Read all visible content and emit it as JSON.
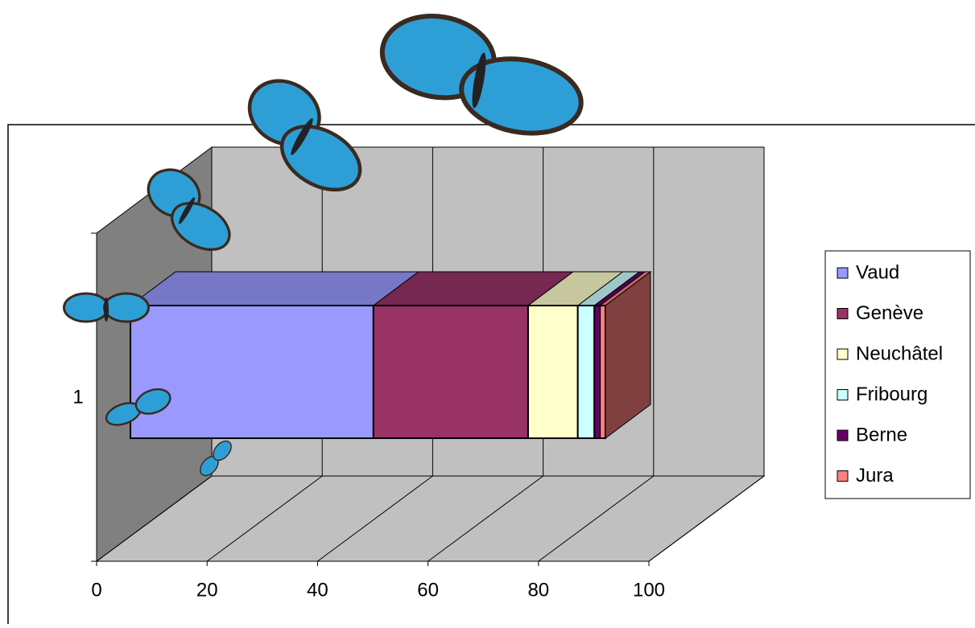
{
  "chart_data": {
    "type": "bar",
    "orientation": "horizontal",
    "stacked": true,
    "3d": true,
    "categories": [
      "1"
    ],
    "series": [
      {
        "name": "Vaud",
        "color": "#9999ff",
        "values": [
          44
        ]
      },
      {
        "name": "Genève",
        "color": "#993366",
        "values": [
          28
        ]
      },
      {
        "name": "Neuchâtel",
        "color": "#ffffcc",
        "values": [
          9
        ]
      },
      {
        "name": "Fribourg",
        "color": "#ccffff",
        "values": [
          3
        ]
      },
      {
        "name": "Berne",
        "color": "#660066",
        "values": [
          1
        ]
      },
      {
        "name": "Jura",
        "color": "#ff8080",
        "values": [
          1
        ]
      }
    ],
    "xlim": [
      0,
      100
    ],
    "xticks": [
      0,
      20,
      40,
      60,
      80,
      100
    ],
    "grid": true,
    "legend": "right"
  }
}
